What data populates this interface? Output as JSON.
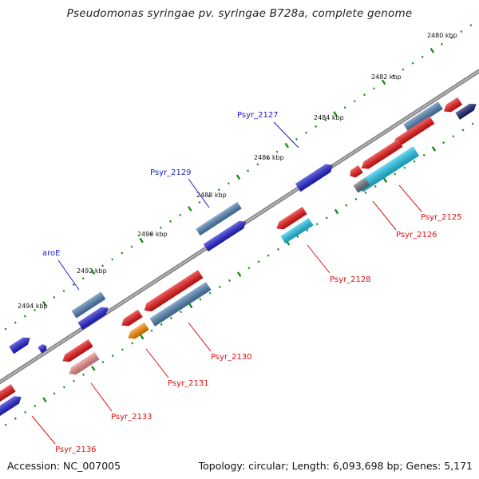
{
  "title": "Pseudomonas syringae pv. syringae B728a, complete genome",
  "footer": {
    "accession": "Accession: NC_007005",
    "stats": "Topology: circular; Length: 6,093,698 bp; Genes: 5,171"
  },
  "colors": {
    "backbone": "#888888",
    "tick_dot": "#1b8a1b",
    "label_top": "#1a1acc",
    "label_bottom": "#dd1111",
    "fwd_dark": "#1f1fd6",
    "fwd_light": "#4f82b5",
    "rev_red": "#ee1111",
    "rev_pink": "#f08a8a",
    "rev_orange": "#ff8c00",
    "rev_cyan": "#1ec8ee",
    "rev_grey": "#6b7280",
    "navy": "#13186e"
  },
  "scale_labels": [
    "2480 kbp",
    "2482 kbp",
    "2484 kbp",
    "2486 kbp",
    "2488 kbp",
    "2490 kbp",
    "2492 kbp",
    "2494 kbp"
  ],
  "gene_labels": {
    "top": [
      "Psyr_2127",
      "Psyr_2129",
      "aroE"
    ],
    "bottom": [
      "Psyr_2125",
      "Psyr_2126",
      "Psyr_2128",
      "Psyr_2130",
      "Psyr_2131",
      "Psyr_2133",
      "Psyr_2136"
    ]
  }
}
